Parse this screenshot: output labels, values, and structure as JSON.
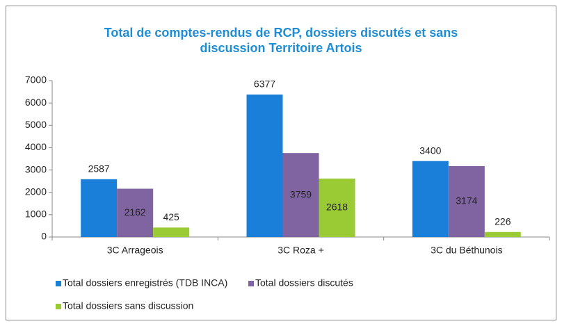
{
  "chart_data": {
    "type": "bar",
    "title": "Total de comptes-rendus de RCP, dossiers discutés et sans discussion Territoire Artois",
    "categories": [
      "3C Arrageois",
      "3C Roza +",
      "3C du Béthunois"
    ],
    "series": [
      {
        "name": "Total dossiers enregistrés (TDB INCA)",
        "color": "#1a7fd8",
        "values": [
          2587,
          6377,
          3400
        ]
      },
      {
        "name": "Total dossiers discutés",
        "color": "#8064a2",
        "values": [
          2162,
          3759,
          3174
        ]
      },
      {
        "name": "Total dossiers sans discussion",
        "color": "#9acb34",
        "values": [
          425,
          2618,
          226
        ]
      }
    ],
    "ylim": [
      0,
      7000
    ],
    "yticks": [
      0,
      1000,
      2000,
      3000,
      4000,
      5000,
      6000,
      7000
    ],
    "grid": false
  }
}
